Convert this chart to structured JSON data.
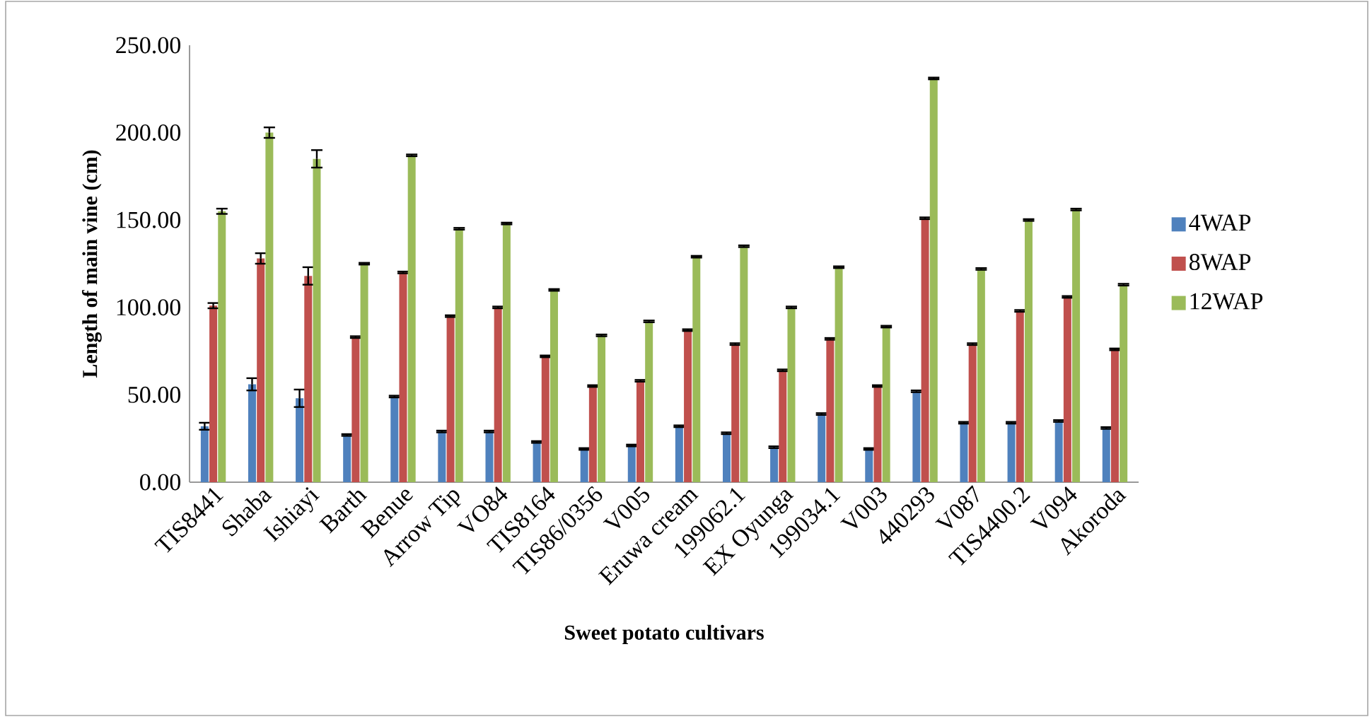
{
  "chart_data": {
    "type": "bar",
    "xlabel": "Sweet potato cultivars",
    "ylabel": "Length of main vine (cm)",
    "categories": [
      "TIS8441",
      "Shaba",
      "Ishiayi",
      "Barth",
      "Benue",
      "Arrow Tip",
      "VO84",
      "TIS8164",
      "TIS86/0356",
      "V005",
      "Eruwa cream",
      "199062.1",
      "EX Oyunga",
      "199034.1",
      "V003",
      "440293",
      "V087",
      "TIS4400.2",
      "V094",
      "Akoroda"
    ],
    "series": [
      {
        "name": "4WAP",
        "color": "#4f81bd",
        "values": [
          32,
          56,
          48,
          27,
          49,
          29,
          29,
          23,
          19,
          21,
          32,
          28,
          20,
          39,
          19,
          52,
          34,
          34,
          35,
          31
        ],
        "errors": [
          2,
          3.5,
          5,
          0.5,
          0.5,
          0.5,
          0.5,
          0.5,
          0.5,
          0.5,
          0.5,
          0.5,
          0.5,
          0.5,
          0.5,
          0.5,
          0.5,
          0.5,
          0.5,
          0.5
        ]
      },
      {
        "name": "8WAP",
        "color": "#c0504d",
        "values": [
          101,
          128,
          118,
          83,
          120,
          95,
          100,
          72,
          55,
          58,
          87,
          79,
          64,
          82,
          55,
          151,
          79,
          98,
          106,
          76
        ],
        "errors": [
          1.5,
          3,
          5,
          0.5,
          0.5,
          0.5,
          0.5,
          0.5,
          0.5,
          0.5,
          0.5,
          0.5,
          0.5,
          0.5,
          0.5,
          0.5,
          0.5,
          0.5,
          0.5,
          0.5
        ]
      },
      {
        "name": "12WAP",
        "color": "#9bbb59",
        "values": [
          155,
          200,
          185,
          125,
          187,
          145,
          148,
          110,
          84,
          92,
          129,
          135,
          100,
          123,
          89,
          231,
          122,
          150,
          156,
          113
        ],
        "errors": [
          1.5,
          3,
          5,
          0.5,
          0.5,
          0.5,
          0.5,
          0.5,
          0.5,
          0.5,
          0.5,
          0.5,
          0.5,
          0.5,
          0.5,
          0.5,
          0.5,
          0.5,
          0.5,
          0.5
        ]
      }
    ],
    "ylim": [
      0,
      250
    ],
    "yticks": [
      {
        "value": 0,
        "label": "0.00"
      },
      {
        "value": 50,
        "label": "50.00"
      },
      {
        "value": 100,
        "label": "100.00"
      },
      {
        "value": 150,
        "label": "150.00"
      },
      {
        "value": 200,
        "label": "200.00"
      },
      {
        "value": 250,
        "label": "250.00"
      }
    ],
    "legend": "right"
  }
}
